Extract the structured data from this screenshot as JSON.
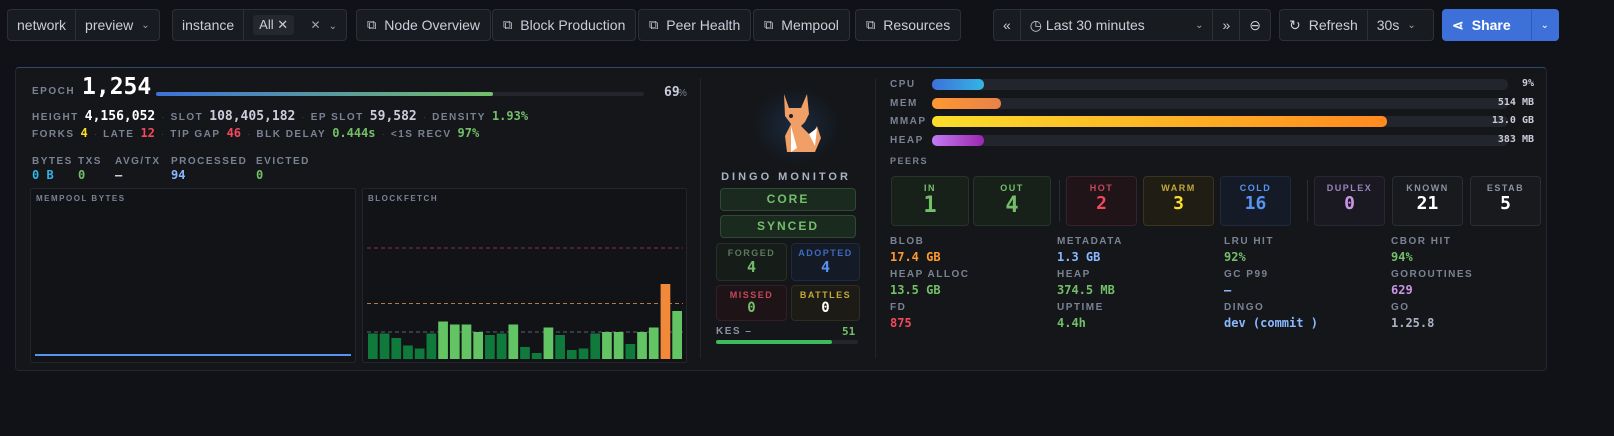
{
  "toolbar": {
    "network_label": "network",
    "network_value": "preview",
    "instance_label": "instance",
    "instance_chip": "All",
    "links": [
      "Node Overview",
      "Block Production",
      "Peer Health",
      "Mempool",
      "Resources"
    ],
    "time_range": "Last 30 minutes",
    "refresh": "Refresh",
    "refresh_interval": "30s",
    "share": "Share"
  },
  "epoch": {
    "label": "EPOCH",
    "value": "1,254",
    "progress_pct": 69,
    "pct_text": "69",
    "pct_sign": "%"
  },
  "stats1": [
    {
      "label": "HEIGHT",
      "value": "4,156,052"
    },
    {
      "label": "SLOT",
      "value": "108,405,182"
    },
    {
      "label": "EP SLOT",
      "value": "59,582"
    },
    {
      "label": "DENSITY",
      "value": "1.93%"
    }
  ],
  "stats2": [
    {
      "label": "FORKS",
      "value": "4"
    },
    {
      "label": "LATE",
      "value": "12"
    },
    {
      "label": "TIP GAP",
      "value": "46"
    },
    {
      "label": "BLK DELAY",
      "value": "0.444s"
    },
    {
      "label": "<1S RECV",
      "value": "97%"
    }
  ],
  "mempool": {
    "headers": [
      "BYTES",
      "TXS",
      "AVG/TX",
      "PROCESSED",
      "EVICTED"
    ],
    "values": [
      "0 B",
      "0",
      "–",
      "94",
      "0"
    ]
  },
  "chart_data": [
    {
      "type": "line",
      "title": "MEMPOOL BYTES",
      "series": [
        {
          "name": "bytes",
          "values": [
            0,
            0,
            0,
            0,
            0,
            0,
            0,
            0,
            0,
            0
          ]
        }
      ]
    },
    {
      "type": "bar",
      "title": "BLOCKFETCH",
      "values": [
        17,
        17,
        14,
        9,
        7,
        17,
        25,
        23,
        23,
        18,
        16,
        17,
        23,
        8,
        4,
        21,
        16,
        6,
        7,
        17,
        18,
        18,
        10,
        18,
        21,
        50,
        32
      ],
      "thresholds": [
        18,
        37,
        74
      ],
      "ylim": [
        0,
        100
      ]
    }
  ],
  "node": {
    "title": "DINGO MONITOR",
    "role": "CORE",
    "sync": "SYNCED",
    "forged_label": "FORGED",
    "forged": "4",
    "adopted_label": "ADOPTED",
    "adopted": "4",
    "missed_label": "MISSED",
    "missed": "0",
    "battles_label": "BATTLES",
    "battles": "0",
    "kes_label": "KES –",
    "kes_value": "51",
    "kes_pct": 82
  },
  "resources": [
    {
      "label": "CPU",
      "value": "9%",
      "pct": 9
    },
    {
      "label": "MEM",
      "value": "514 MB",
      "pct": 12
    },
    {
      "label": "MMAP",
      "value": "13.0 GB",
      "pct": 79
    },
    {
      "label": "HEAP",
      "value": "383 MB",
      "pct": 9
    }
  ],
  "peers": {
    "label": "PEERS",
    "items": [
      {
        "label": "IN",
        "value": "1"
      },
      {
        "label": "OUT",
        "value": "4"
      },
      {
        "label": "HOT",
        "value": "2"
      },
      {
        "label": "WARM",
        "value": "3"
      },
      {
        "label": "COLD",
        "value": "16"
      },
      {
        "label": "DUPLEX",
        "value": "0"
      },
      {
        "label": "KNOWN",
        "value": "21"
      },
      {
        "label": "ESTAB",
        "value": "5"
      }
    ]
  },
  "metrics": [
    {
      "label": "BLOB",
      "value": "17.4 GB"
    },
    {
      "label": "METADATA",
      "value": "1.3 GB"
    },
    {
      "label": "LRU HIT",
      "value": "92%"
    },
    {
      "label": "CBOR HIT",
      "value": "94%"
    },
    {
      "label": "HEAP ALLOC",
      "value": "13.5 GB"
    },
    {
      "label": "HEAP",
      "value": "374.5 MB"
    },
    {
      "label": "GC P99",
      "value": "–"
    },
    {
      "label": "GOROUTINES",
      "value": "629"
    },
    {
      "label": "FD",
      "value": "875"
    },
    {
      "label": "UPTIME",
      "value": "4.4h"
    },
    {
      "label": "DINGO",
      "value": "dev (commit )"
    },
    {
      "label": "GO",
      "value": "1.25.8"
    }
  ],
  "colors": {
    "accent": "#3d71d9",
    "green": "#73bf69",
    "red": "#f2495c",
    "orange": "#ff9830",
    "yellow": "#fade2a",
    "blue": "#8ab8ff",
    "purple": "#ca95e5"
  }
}
